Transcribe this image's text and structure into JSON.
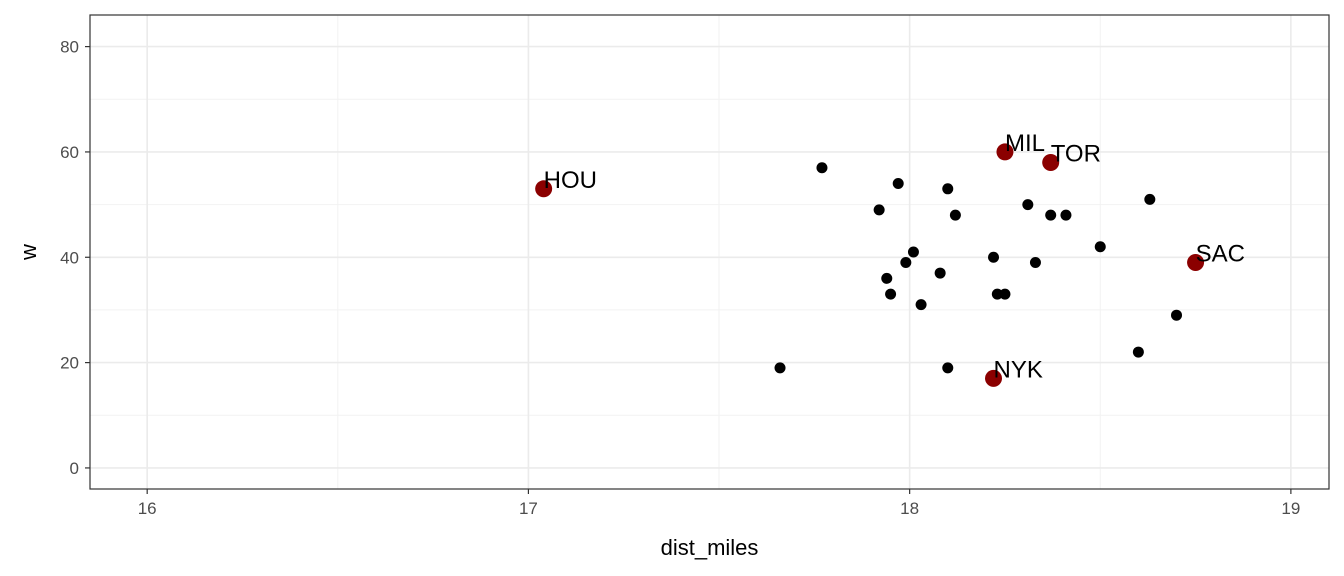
{
  "chart_data": {
    "type": "scatter",
    "title": "",
    "xlabel": "dist_miles",
    "ylabel": "w",
    "xlim": [
      15.85,
      19.1
    ],
    "ylim": [
      -4,
      86
    ],
    "x_ticks": [
      16,
      17,
      18,
      19
    ],
    "y_ticks": [
      0,
      20,
      40,
      60,
      80
    ],
    "x_tick_labels": [
      "16",
      "17",
      "18",
      "19"
    ],
    "y_tick_labels": [
      "0",
      "20",
      "40",
      "60",
      "80"
    ],
    "grid": true,
    "theme": "bw",
    "colors": {
      "points": "#000000",
      "highlight": "#8b0000"
    },
    "points": [
      {
        "x": 17.66,
        "y": 19
      },
      {
        "x": 17.77,
        "y": 57
      },
      {
        "x": 17.92,
        "y": 49
      },
      {
        "x": 17.94,
        "y": 36
      },
      {
        "x": 17.95,
        "y": 33
      },
      {
        "x": 17.97,
        "y": 54
      },
      {
        "x": 17.99,
        "y": 39
      },
      {
        "x": 18.01,
        "y": 41
      },
      {
        "x": 18.03,
        "y": 31
      },
      {
        "x": 18.08,
        "y": 37
      },
      {
        "x": 18.1,
        "y": 53
      },
      {
        "x": 18.1,
        "y": 19
      },
      {
        "x": 18.12,
        "y": 48
      },
      {
        "x": 18.22,
        "y": 40
      },
      {
        "x": 18.23,
        "y": 33
      },
      {
        "x": 18.25,
        "y": 33
      },
      {
        "x": 18.31,
        "y": 50
      },
      {
        "x": 18.33,
        "y": 39
      },
      {
        "x": 18.37,
        "y": 48
      },
      {
        "x": 18.41,
        "y": 48
      },
      {
        "x": 18.5,
        "y": 42
      },
      {
        "x": 18.6,
        "y": 22
      },
      {
        "x": 18.63,
        "y": 51
      },
      {
        "x": 18.7,
        "y": 29
      }
    ],
    "highlighted": [
      {
        "x": 17.04,
        "y": 53,
        "label": "HOU"
      },
      {
        "x": 18.25,
        "y": 60,
        "label": "MIL"
      },
      {
        "x": 18.37,
        "y": 58,
        "label": "TOR"
      },
      {
        "x": 18.75,
        "y": 39,
        "label": "SAC"
      },
      {
        "x": 18.22,
        "y": 17,
        "label": "NYK"
      }
    ]
  }
}
